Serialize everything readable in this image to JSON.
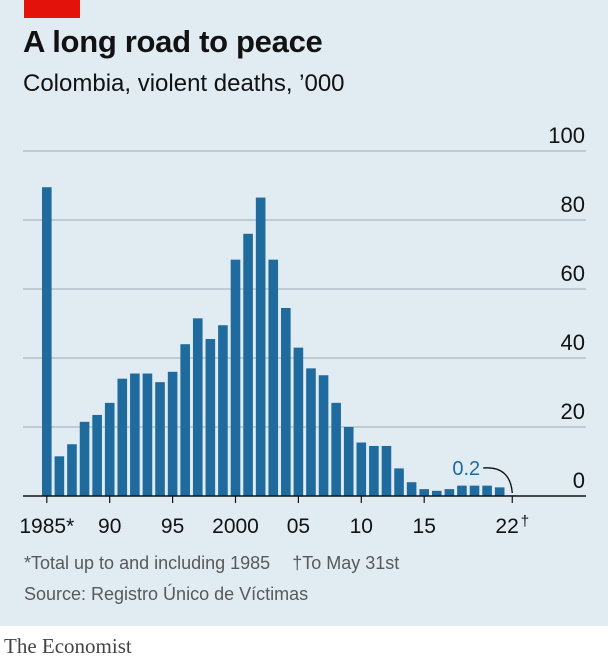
{
  "header": {
    "title": "A long road to peace",
    "subtitle": "Colombia, violent deaths, ’000"
  },
  "footer": {
    "footnote_1": "*Total up to and including 1985",
    "footnote_2": "†To May 31st",
    "source": "Source: Registro Único de Víctimas",
    "brand": "The Economist"
  },
  "colors": {
    "background": "#e1ebf2",
    "bar": "#1f6b9e",
    "annotation": "#1f6b9e",
    "grid": "#a9b9c6",
    "axis": "#121212",
    "tag": "#e3120b"
  },
  "chart_data": {
    "type": "bar",
    "title": "A long road to peace",
    "subtitle": "Colombia, violent deaths, ’000",
    "xlabel": "",
    "ylabel": "",
    "ylim": [
      0,
      100
    ],
    "y_ticks": [
      "0",
      "20",
      "40",
      "60",
      "80",
      "100"
    ],
    "y_tick_values": [
      0,
      20,
      40,
      60,
      80,
      100
    ],
    "y_axis_side": "right",
    "grid": true,
    "x": [
      "1985*",
      "1986",
      "1987",
      "1988",
      "1989",
      "1990",
      "1991",
      "1992",
      "1993",
      "1994",
      "1995",
      "1996",
      "1997",
      "1998",
      "1999",
      "2000",
      "2001",
      "2002",
      "2003",
      "2004",
      "2005",
      "2006",
      "2007",
      "2008",
      "2009",
      "2010",
      "2011",
      "2012",
      "2013",
      "2014",
      "2015",
      "2016",
      "2017",
      "2018",
      "2019",
      "2020",
      "2021",
      "2022†"
    ],
    "values": [
      89.5,
      11.5,
      15,
      21.5,
      23.5,
      27,
      34,
      35.5,
      35.5,
      33,
      36,
      44,
      51.5,
      45.5,
      49.5,
      68.5,
      76,
      86.5,
      68.5,
      54.5,
      43,
      37,
      35,
      27,
      20,
      15.5,
      14.5,
      14.5,
      8,
      4,
      2,
      1.5,
      2,
      3,
      3,
      3,
      2.5,
      0.2
    ],
    "x_tick_labels": [
      {
        "index": 0,
        "label": "1985*"
      },
      {
        "index": 5,
        "label": "90"
      },
      {
        "index": 10,
        "label": "95"
      },
      {
        "index": 15,
        "label": "2000"
      },
      {
        "index": 20,
        "label": "05"
      },
      {
        "index": 25,
        "label": "10"
      },
      {
        "index": 30,
        "label": "15"
      },
      {
        "index": 37,
        "label": "22†"
      }
    ],
    "annotations": [
      {
        "target_index": 37,
        "text": "0.2"
      }
    ]
  }
}
